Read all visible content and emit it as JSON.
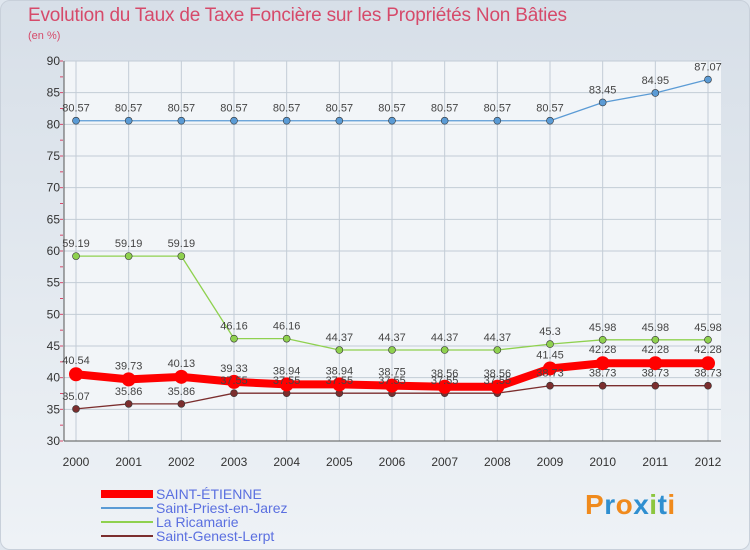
{
  "chart_data": {
    "type": "line",
    "title": "Evolution du Taux de Taxe Foncière sur les Propriétés Non Bâties",
    "ylabel": "(en %)",
    "xlabel": "",
    "categories": [
      "2000",
      "2001",
      "2002",
      "2003",
      "2004",
      "2005",
      "2006",
      "2007",
      "2008",
      "2009",
      "2010",
      "2011",
      "2012"
    ],
    "ylim": [
      30,
      90
    ],
    "yticks": [
      30,
      35,
      40,
      45,
      50,
      55,
      60,
      65,
      70,
      75,
      80,
      85,
      90
    ],
    "grid": true,
    "series": [
      {
        "name": "SAINT-ÉTIENNE",
        "color": "#ff0000",
        "values": [
          40.54,
          39.73,
          40.13,
          39.33,
          38.94,
          38.94,
          38.75,
          38.56,
          38.56,
          41.45,
          42.28,
          42.28,
          42.28
        ],
        "labels": [
          "40.54",
          "39.73",
          "40.13",
          "39.33",
          "38.94",
          "38.94",
          "38.75",
          "38.56",
          "38.56",
          "41.45",
          "42.28",
          "42.28",
          "42.28"
        ]
      },
      {
        "name": "Saint-Priest-en-Jarez",
        "color": "#5b9bd5",
        "values": [
          80.57,
          80.57,
          80.57,
          80.57,
          80.57,
          80.57,
          80.57,
          80.57,
          80.57,
          80.57,
          83.45,
          84.95,
          87.07
        ],
        "labels": [
          "80.57",
          "80.57",
          "80.57",
          "80.57",
          "80.57",
          "80.57",
          "80.57",
          "80.57",
          "80.57",
          "80.57",
          "83.45",
          "84.95",
          "87.07"
        ]
      },
      {
        "name": "La Ricamarie",
        "color": "#8fd14f",
        "values": [
          59.19,
          59.19,
          59.19,
          46.16,
          46.16,
          44.37,
          44.37,
          44.37,
          44.37,
          45.3,
          45.98,
          45.98,
          45.98
        ],
        "labels": [
          "59.19",
          "59.19",
          "59.19",
          "46.16",
          "46.16",
          "44.37",
          "44.37",
          "44.37",
          "44.37",
          "45.3",
          "45.98",
          "45.98",
          "45.98"
        ]
      },
      {
        "name": "Saint-Genest-Lerpt",
        "color": "#7b2e2e",
        "values": [
          35.07,
          35.86,
          35.86,
          37.55,
          37.55,
          37.55,
          37.55,
          37.55,
          37.55,
          38.73,
          38.73,
          38.73,
          38.73
        ],
        "labels": [
          "35.07",
          "35.86",
          "35.86",
          "37.55",
          "37.55",
          "37.55",
          "37.55",
          "37.55",
          "37.55",
          "38.73",
          "38.73",
          "38.73",
          "38.73"
        ]
      }
    ]
  },
  "legend": {
    "items": [
      {
        "label": "SAINT-ÉTIENNE",
        "color": "#ff0000"
      },
      {
        "label": "Saint-Priest-en-Jarez",
        "color": "#5b9bd5"
      },
      {
        "label": "La Ricamarie",
        "color": "#8fd14f"
      },
      {
        "label": "Saint-Genest-Lerpt",
        "color": "#7b2e2e"
      }
    ]
  },
  "logo": {
    "text": "Proxiti"
  }
}
